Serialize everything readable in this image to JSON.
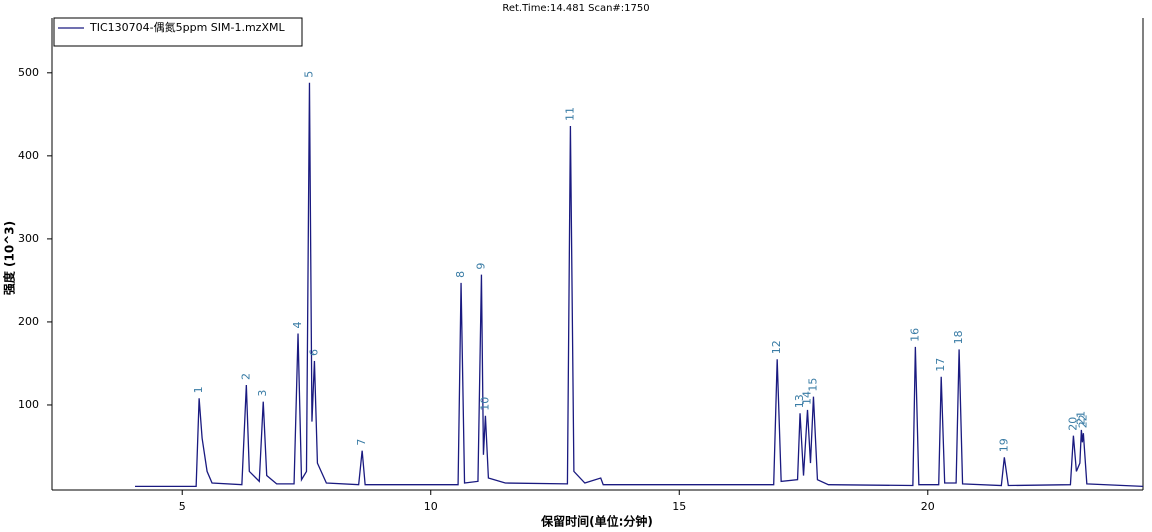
{
  "chart_data": {
    "type": "line",
    "title": "Ret.Time:14.481  Scan#:1750",
    "xlabel": "保留时间(单位:分钟)",
    "ylabel": "强度 (10^3)",
    "xlim": [
      2.38,
      24.33
    ],
    "ylim": [
      -2.4,
      566
    ],
    "xticks": [
      5,
      10,
      15,
      20
    ],
    "yticks": [
      100,
      200,
      300,
      400,
      500
    ],
    "grid": false,
    "legend": "top-left",
    "series": [
      {
        "name": "TIC130704-偶氮5ppm SIM-1.mzXML",
        "color": "#1a1a80",
        "x": [
          4.05,
          5.28,
          5.34,
          5.4,
          5.5,
          5.6,
          6.2,
          6.29,
          6.35,
          6.55,
          6.63,
          6.7,
          6.9,
          7.25,
          7.33,
          7.4,
          7.5,
          7.56,
          7.61,
          7.66,
          7.72,
          7.9,
          8.55,
          8.62,
          8.68,
          10.55,
          10.61,
          10.68,
          10.95,
          11.02,
          11.06,
          11.1,
          11.16,
          11.5,
          12.75,
          12.81,
          12.88,
          13.1,
          13.42,
          13.47,
          16.9,
          16.97,
          17.05,
          17.38,
          17.43,
          17.5,
          17.58,
          17.64,
          17.7,
          17.78,
          18,
          19.7,
          19.75,
          19.82,
          20.22,
          20.27,
          20.34,
          20.57,
          20.63,
          20.7,
          21.48,
          21.54,
          21.62,
          22.87,
          22.93,
          22.99,
          23.06,
          23.09,
          23.11,
          23.13,
          23.2,
          24.33
        ],
        "values": [
          2,
          2,
          108,
          60,
          20,
          6,
          4,
          124,
          20,
          8,
          104,
          15,
          5,
          5,
          186,
          10,
          20,
          488,
          80,
          153,
          30,
          6,
          4,
          45,
          4,
          4,
          247,
          6,
          8,
          257,
          40,
          87,
          12,
          6,
          5,
          436,
          20,
          6,
          12,
          4,
          4,
          155,
          8,
          10,
          90,
          15,
          94,
          30,
          110,
          10,
          4,
          3,
          170,
          4,
          4,
          134,
          6,
          6,
          167,
          5,
          3,
          37,
          3,
          4,
          63,
          20,
          30,
          70,
          55,
          66,
          5,
          2
        ]
      }
    ],
    "peaks": [
      {
        "label": "1",
        "rt": 5.34,
        "height": 108
      },
      {
        "label": "2",
        "rt": 6.29,
        "height": 124
      },
      {
        "label": "3",
        "rt": 6.63,
        "height": 104
      },
      {
        "label": "4",
        "rt": 7.33,
        "height": 186
      },
      {
        "label": "5",
        "rt": 7.56,
        "height": 488
      },
      {
        "label": "6",
        "rt": 7.66,
        "height": 153
      },
      {
        "label": "7",
        "rt": 8.62,
        "height": 45
      },
      {
        "label": "8",
        "rt": 10.61,
        "height": 247
      },
      {
        "label": "9",
        "rt": 11.02,
        "height": 257
      },
      {
        "label": "10",
        "rt": 11.1,
        "height": 87
      },
      {
        "label": "11",
        "rt": 12.81,
        "height": 436
      },
      {
        "label": "12",
        "rt": 16.97,
        "height": 155
      },
      {
        "label": "13",
        "rt": 17.43,
        "height": 90
      },
      {
        "label": "14",
        "rt": 17.58,
        "height": 94
      },
      {
        "label": "15",
        "rt": 17.7,
        "height": 110
      },
      {
        "label": "16",
        "rt": 19.75,
        "height": 170
      },
      {
        "label": "17",
        "rt": 20.27,
        "height": 134
      },
      {
        "label": "18",
        "rt": 20.63,
        "height": 167
      },
      {
        "label": "19",
        "rt": 21.54,
        "height": 37
      },
      {
        "label": "20",
        "rt": 22.93,
        "height": 63
      },
      {
        "label": "21",
        "rt": 23.09,
        "height": 70
      },
      {
        "label": "22",
        "rt": 23.13,
        "height": 66
      }
    ]
  }
}
